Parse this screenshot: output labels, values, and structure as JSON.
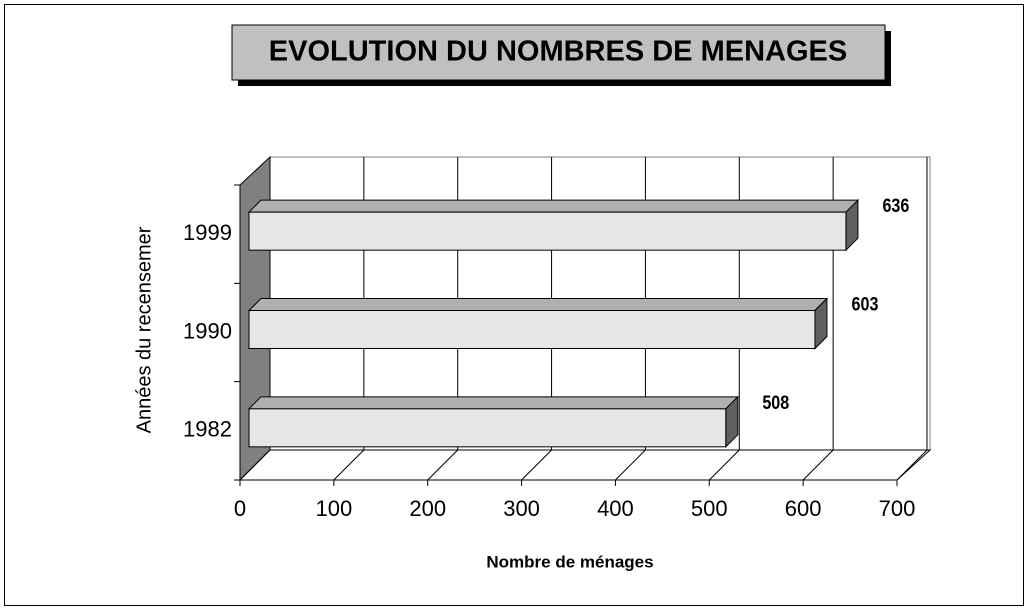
{
  "chart_data": {
    "type": "bar3d_horizontal",
    "title": "EVOLUTION DU NOMBRES DE MENAGES",
    "x_label": "Nombre de ménages",
    "y_label": "Années du recensemer",
    "categories": [
      "1982",
      "1990",
      "1999"
    ],
    "values": [
      508,
      603,
      636
    ],
    "color": "#e6e6e6",
    "wall_color": "#808080",
    "xlim": [
      0,
      700
    ],
    "xticks": [
      0,
      100,
      200,
      300,
      400,
      500,
      600,
      700
    ],
    "grid": true
  }
}
